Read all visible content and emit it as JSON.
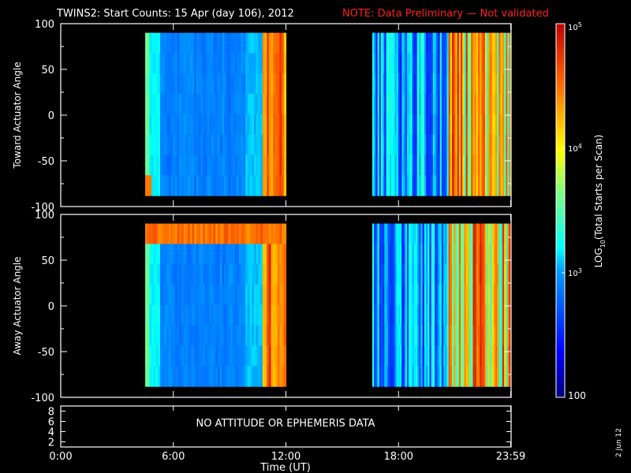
{
  "header": {
    "title": "TWINS2: Start Counts: 15 Apr (day 106), 2012",
    "note": "NOTE: Data Preliminary — Not validated",
    "note_color": "#ff2020"
  },
  "side_date": "2 Jun 12",
  "colors": {
    "background": "#000000",
    "frame": "#ffffff",
    "data_gap": "#000000"
  },
  "chart_data": [
    {
      "type": "heatmap",
      "name": "toward",
      "ylabel": "Toward Actuator Angle",
      "ylim": [
        -100,
        100
      ],
      "yticks": [
        100,
        50,
        0,
        -50,
        -100
      ],
      "xlim_hours": [
        0,
        24
      ],
      "data_blocks_hours": [
        [
          4.5,
          12.0
        ],
        [
          16.6,
          23.99
        ]
      ],
      "angle_range": [
        -88,
        90
      ],
      "color_scale": "log10",
      "colorbar": {
        "label": "LOG10(Total Starts per Scan)",
        "min": 100,
        "max": 100000,
        "ticks": [
          "10^5",
          "10^4",
          "10^3",
          "100"
        ]
      }
    },
    {
      "type": "heatmap",
      "name": "away",
      "ylabel": "Away Actuator Angle",
      "ylim": [
        -100,
        100
      ],
      "yticks": [
        100,
        50,
        0,
        -50,
        -100
      ],
      "xlim_hours": [
        0,
        24
      ],
      "data_blocks_hours": [
        [
          4.5,
          12.0
        ],
        [
          16.6,
          23.99
        ]
      ],
      "angle_range": [
        -88,
        90
      ],
      "color_scale": "log10"
    },
    {
      "type": "line",
      "name": "attitude",
      "yticks": [
        8,
        6,
        4,
        2
      ],
      "ylim": [
        1,
        9
      ],
      "message": "NO ATTITUDE OR EPHEMERIS DATA"
    }
  ],
  "xaxis": {
    "ticks": [
      "0:00",
      "6:00",
      "12:00",
      "18:00",
      "23:59"
    ],
    "tick_hours": [
      0,
      6,
      12,
      18,
      23.98
    ],
    "label": "Time (UT)"
  },
  "colorbar": {
    "label_main": "LOG",
    "label_sub": "10",
    "label_tail": "(Total Starts per Scan)",
    "tick_top_base": "10",
    "tick_top_exp": "5",
    "tick_mid1_base": "10",
    "tick_mid1_exp": "4",
    "tick_mid2_base": "10",
    "tick_mid2_exp": "3",
    "tick_bottom": "100"
  }
}
